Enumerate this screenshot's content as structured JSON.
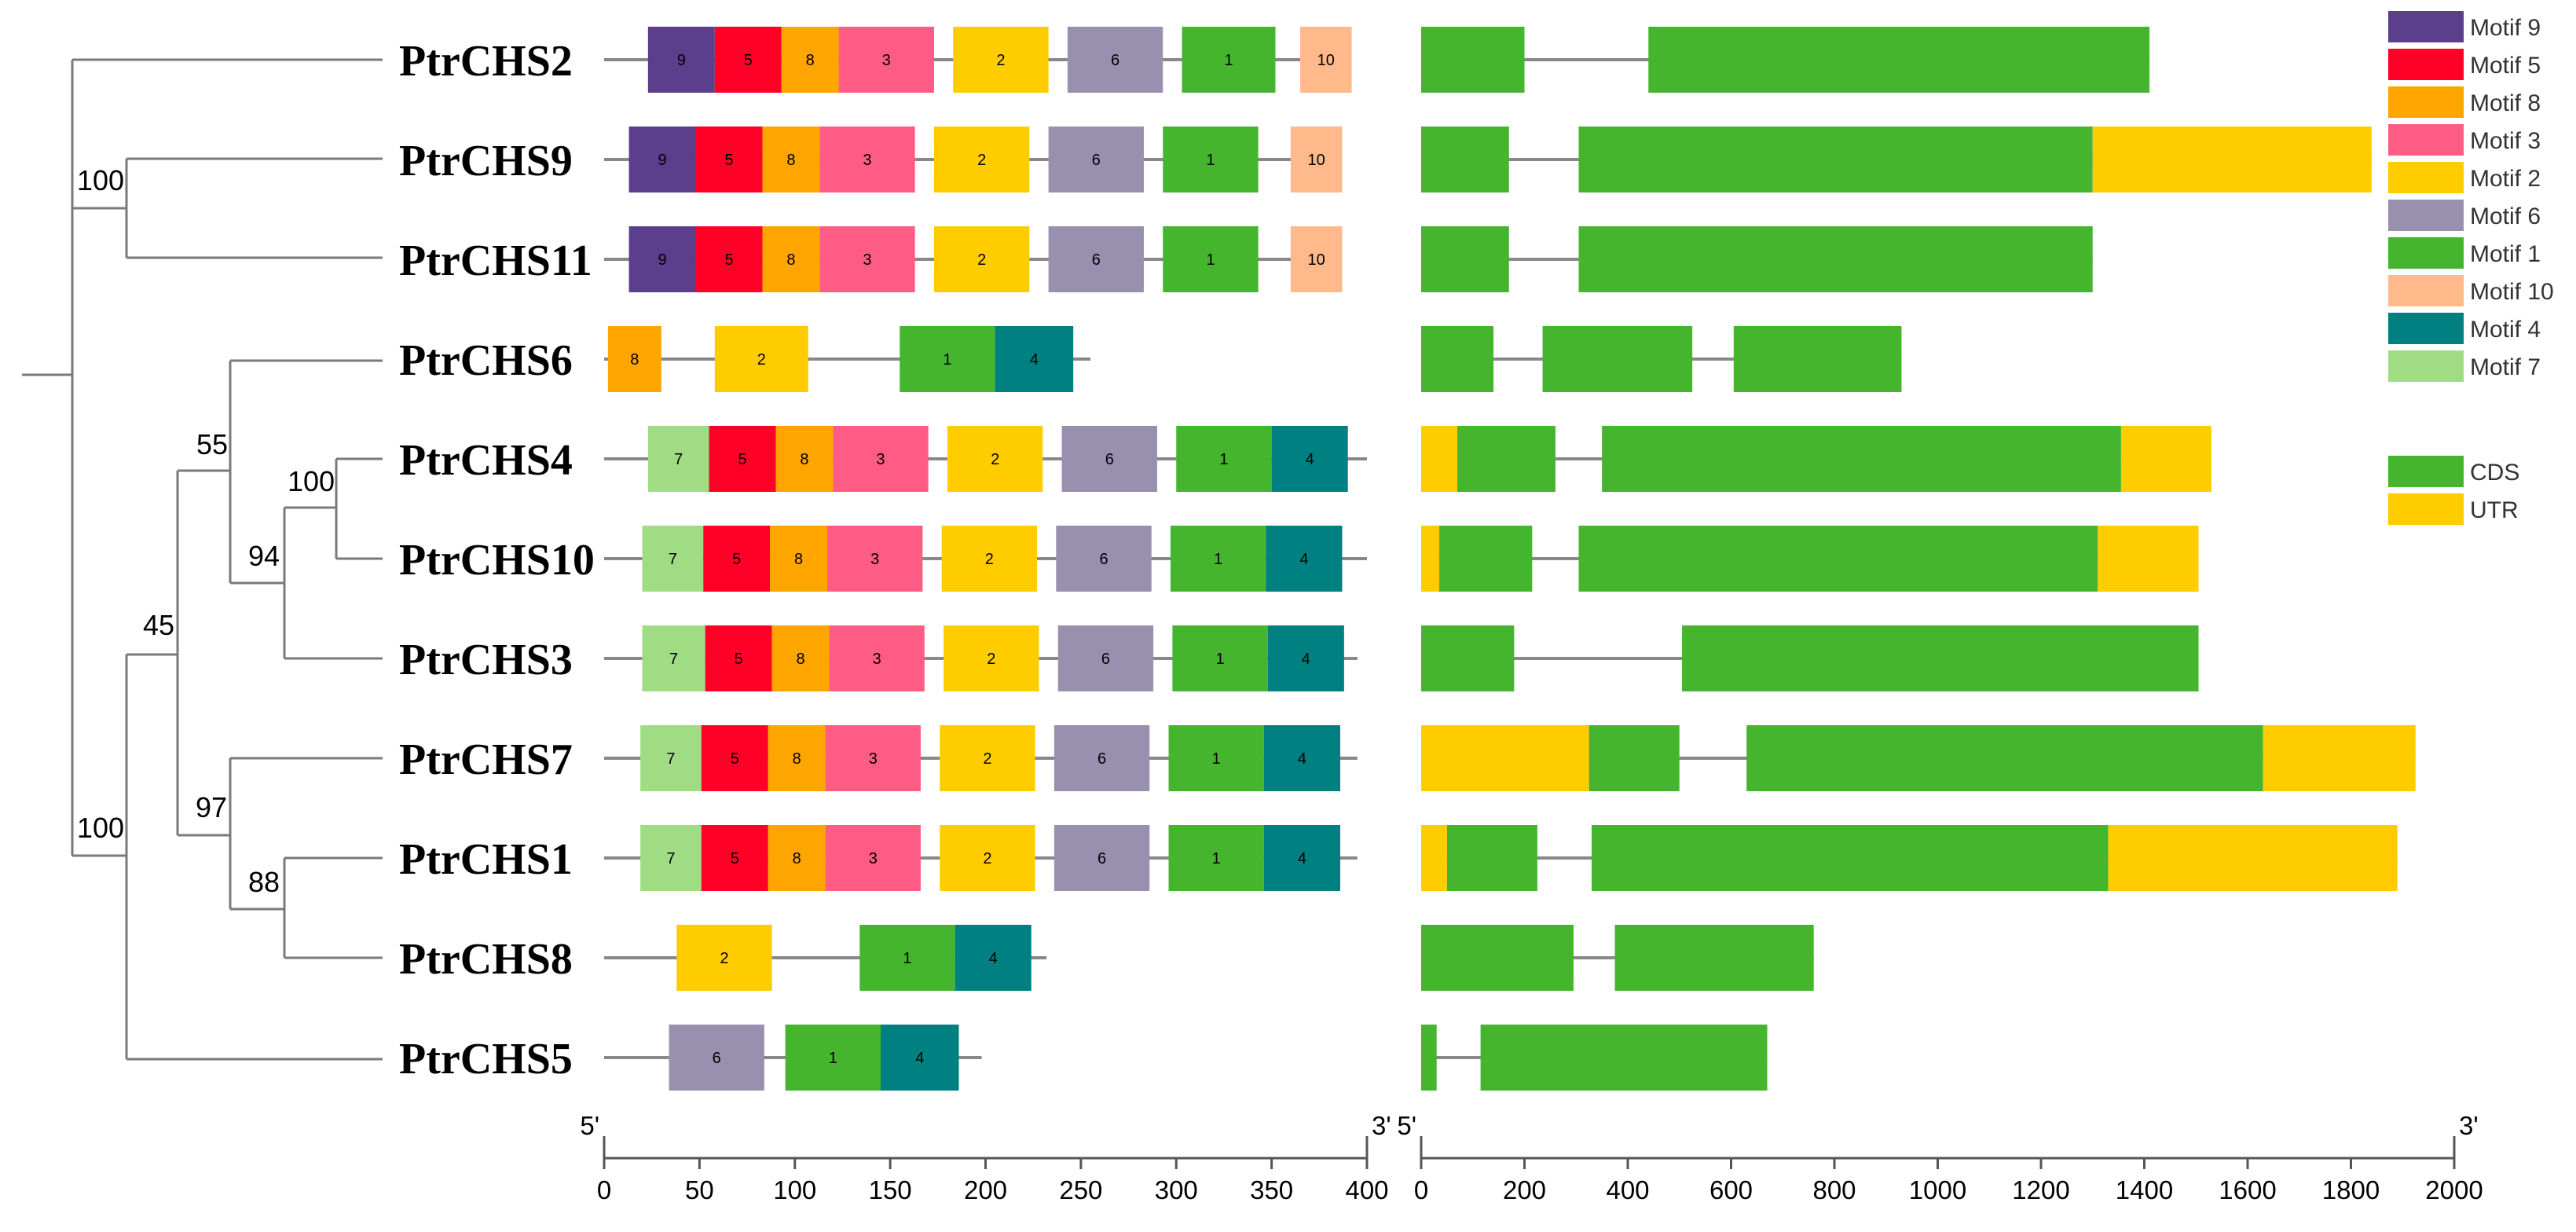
{
  "motifs": [
    {
      "id": "9",
      "name": "Motif 9",
      "color": "#5B3E8C"
    },
    {
      "id": "5",
      "name": "Motif 5",
      "color": "#FF0026"
    },
    {
      "id": "8",
      "name": "Motif 8",
      "color": "#FFA500"
    },
    {
      "id": "3",
      "name": "Motif 3",
      "color": "#FF5C85"
    },
    {
      "id": "2",
      "name": "Motif 2",
      "color": "#FFCC00"
    },
    {
      "id": "6",
      "name": "Motif 6",
      "color": "#9990B0"
    },
    {
      "id": "1",
      "name": "Motif 1",
      "color": "#45B52E"
    },
    {
      "id": "10",
      "name": "Motif 10",
      "color": "#FFB98A"
    },
    {
      "id": "4",
      "name": "Motif 4",
      "color": "#008080"
    },
    {
      "id": "7",
      "name": "Motif 7",
      "color": "#A0DC84"
    }
  ],
  "structure_legend": [
    {
      "name": "CDS",
      "color": "#45B52E"
    },
    {
      "name": "UTR",
      "color": "#FFCC00"
    }
  ],
  "genes": [
    {
      "name": "PtrCHS2",
      "length": 390,
      "motifs": [
        [
          "9",
          23,
          58
        ],
        [
          "5",
          58,
          93
        ],
        [
          "8",
          93,
          123
        ],
        [
          "3",
          123,
          173
        ],
        [
          "2",
          183,
          233
        ],
        [
          "6",
          243,
          293
        ],
        [
          "1",
          303,
          352
        ],
        [
          "10",
          365,
          392
        ]
      ],
      "exons": [
        [
          "CDS",
          0,
          200
        ],
        [
          "CDS",
          440,
          1410
        ]
      ]
    },
    {
      "name": "PtrCHS9",
      "length": 380,
      "motifs": [
        [
          "9",
          13,
          48
        ],
        [
          "5",
          48,
          83
        ],
        [
          "8",
          83,
          113
        ],
        [
          "3",
          113,
          163
        ],
        [
          "2",
          173,
          223
        ],
        [
          "6",
          233,
          283
        ],
        [
          "1",
          293,
          343
        ],
        [
          "10",
          360,
          387
        ]
      ],
      "exons": [
        [
          "CDS",
          0,
          170
        ],
        [
          "CDS",
          305,
          1300
        ],
        [
          "UTR",
          1300,
          1840
        ]
      ]
    },
    {
      "name": "PtrCHS11",
      "length": 380,
      "motifs": [
        [
          "9",
          13,
          48
        ],
        [
          "5",
          48,
          83
        ],
        [
          "8",
          83,
          113
        ],
        [
          "3",
          113,
          163
        ],
        [
          "2",
          173,
          223
        ],
        [
          "6",
          233,
          283
        ],
        [
          "1",
          293,
          343
        ],
        [
          "10",
          360,
          387
        ]
      ],
      "exons": [
        [
          "CDS",
          0,
          170
        ],
        [
          "CDS",
          305,
          1300
        ]
      ]
    },
    {
      "name": "PtrCHS6",
      "length": 255,
      "motifs": [
        [
          "8",
          2,
          30
        ],
        [
          "2",
          58,
          107
        ],
        [
          "1",
          155,
          205
        ],
        [
          "4",
          205,
          246
        ]
      ],
      "exons": [
        [
          "CDS",
          0,
          140
        ],
        [
          "CDS",
          235,
          525
        ],
        [
          "CDS",
          605,
          930
        ]
      ]
    },
    {
      "name": "PtrCHS4",
      "length": 400,
      "motifs": [
        [
          "7",
          23,
          55
        ],
        [
          "5",
          55,
          90
        ],
        [
          "8",
          90,
          120
        ],
        [
          "3",
          120,
          170
        ],
        [
          "2",
          180,
          230
        ],
        [
          "6",
          240,
          290
        ],
        [
          "1",
          300,
          350
        ],
        [
          "4",
          350,
          390
        ]
      ],
      "exons": [
        [
          "UTR",
          0,
          70
        ],
        [
          "CDS",
          70,
          260
        ],
        [
          "CDS",
          350,
          1355
        ],
        [
          "UTR",
          1355,
          1530
        ]
      ]
    },
    {
      "name": "PtrCHS10",
      "length": 400,
      "motifs": [
        [
          "7",
          20,
          52
        ],
        [
          "5",
          52,
          87
        ],
        [
          "8",
          87,
          117
        ],
        [
          "3",
          117,
          167
        ],
        [
          "2",
          177,
          227
        ],
        [
          "6",
          237,
          287
        ],
        [
          "1",
          297,
          347
        ],
        [
          "4",
          347,
          387
        ]
      ],
      "exons": [
        [
          "UTR",
          0,
          35
        ],
        [
          "CDS",
          35,
          215
        ],
        [
          "CDS",
          305,
          1310
        ],
        [
          "UTR",
          1310,
          1505
        ]
      ]
    },
    {
      "name": "PtrCHS3",
      "length": 395,
      "motifs": [
        [
          "7",
          20,
          53
        ],
        [
          "5",
          53,
          88
        ],
        [
          "8",
          88,
          118
        ],
        [
          "3",
          118,
          168
        ],
        [
          "2",
          178,
          228
        ],
        [
          "6",
          238,
          288
        ],
        [
          "1",
          298,
          348
        ],
        [
          "4",
          348,
          388
        ]
      ],
      "exons": [
        [
          "CDS",
          0,
          180
        ],
        [
          "CDS",
          505,
          1505
        ]
      ]
    },
    {
      "name": "PtrCHS7",
      "length": 395,
      "motifs": [
        [
          "7",
          19,
          51
        ],
        [
          "5",
          51,
          86
        ],
        [
          "8",
          86,
          116
        ],
        [
          "3",
          116,
          166
        ],
        [
          "2",
          176,
          226
        ],
        [
          "6",
          236,
          286
        ],
        [
          "1",
          296,
          346
        ],
        [
          "4",
          346,
          386
        ]
      ],
      "exons": [
        [
          "UTR",
          0,
          325
        ],
        [
          "CDS",
          325,
          500
        ],
        [
          "CDS",
          630,
          1630
        ],
        [
          "UTR",
          1630,
          1925
        ]
      ]
    },
    {
      "name": "PtrCHS1",
      "length": 395,
      "motifs": [
        [
          "7",
          19,
          51
        ],
        [
          "5",
          51,
          86
        ],
        [
          "8",
          86,
          116
        ],
        [
          "3",
          116,
          166
        ],
        [
          "2",
          176,
          226
        ],
        [
          "6",
          236,
          286
        ],
        [
          "1",
          296,
          346
        ],
        [
          "4",
          346,
          386
        ]
      ],
      "exons": [
        [
          "UTR",
          0,
          50
        ],
        [
          "CDS",
          50,
          225
        ],
        [
          "CDS",
          330,
          1330
        ],
        [
          "UTR",
          1330,
          1890
        ]
      ]
    },
    {
      "name": "PtrCHS8",
      "length": 232,
      "motifs": [
        [
          "2",
          38,
          88
        ],
        [
          "1",
          134,
          184
        ],
        [
          "4",
          184,
          224
        ]
      ],
      "exons": [
        [
          "CDS",
          0,
          295
        ],
        [
          "CDS",
          375,
          760
        ]
      ]
    },
    {
      "name": "PtrCHS5",
      "length": 198,
      "motifs": [
        [
          "6",
          34,
          84
        ],
        [
          "1",
          95,
          145
        ],
        [
          "4",
          145,
          186
        ]
      ],
      "exons": [
        [
          "CDS",
          0,
          30
        ],
        [
          "CDS",
          115,
          670
        ]
      ]
    }
  ],
  "tree": {
    "bootstrap": [
      "100",
      "100",
      "55",
      "100",
      "94",
      "45",
      "97",
      "88"
    ]
  },
  "axes": {
    "motif_axis": {
      "min": 0,
      "max": 400,
      "ticks": [
        "0",
        "50",
        "100",
        "150",
        "200",
        "250",
        "300",
        "350",
        "400"
      ],
      "left_end": "5'",
      "right_end": "3'"
    },
    "gene_axis": {
      "min": 0,
      "max": 2000,
      "ticks": [
        "0",
        "200",
        "400",
        "600",
        "800",
        "1000",
        "1200",
        "1400",
        "1600",
        "1800",
        "2000"
      ],
      "left_end": "5'",
      "right_end": "3'"
    }
  }
}
